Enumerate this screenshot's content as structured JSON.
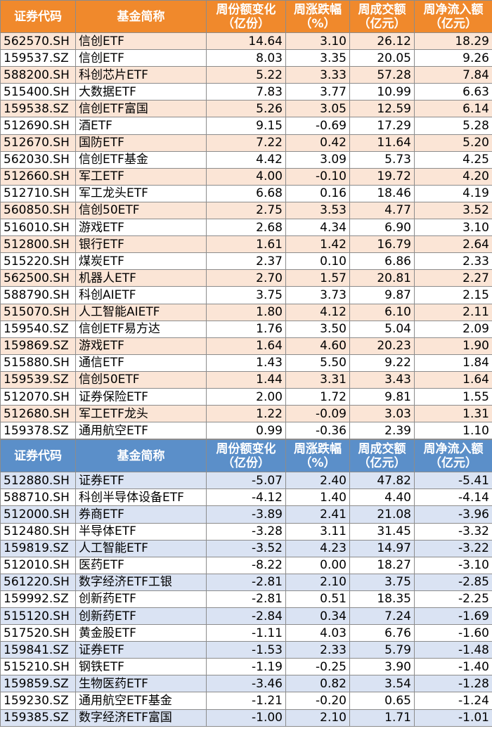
{
  "headers": {
    "code": "证券代码",
    "name": "基金简称",
    "share_change": "周份额变化（亿份）",
    "pct_change": "周涨跌幅（%）",
    "turnover": "周成交额（亿元）",
    "net_inflow": "周净流入额（亿元）"
  },
  "inflow_rows": [
    {
      "code": "562570.SH",
      "name": "信创ETF",
      "share_change": "14.64",
      "pct_change": "3.10",
      "turnover": "26.12",
      "net_inflow": "18.29"
    },
    {
      "code": "159537.SZ",
      "name": "信创ETF",
      "share_change": "8.03",
      "pct_change": "3.35",
      "turnover": "20.05",
      "net_inflow": "9.26"
    },
    {
      "code": "588200.SH",
      "name": "科创芯片ETF",
      "share_change": "5.22",
      "pct_change": "3.33",
      "turnover": "57.28",
      "net_inflow": "7.84"
    },
    {
      "code": "515400.SH",
      "name": "大数据ETF",
      "share_change": "7.83",
      "pct_change": "3.77",
      "turnover": "10.99",
      "net_inflow": "6.63"
    },
    {
      "code": "159538.SZ",
      "name": "信创ETF富国",
      "share_change": "5.26",
      "pct_change": "3.05",
      "turnover": "12.59",
      "net_inflow": "6.14"
    },
    {
      "code": "512690.SH",
      "name": "酒ETF",
      "share_change": "9.15",
      "pct_change": "-0.69",
      "turnover": "17.29",
      "net_inflow": "5.28"
    },
    {
      "code": "512670.SH",
      "name": "国防ETF",
      "share_change": "7.22",
      "pct_change": "0.42",
      "turnover": "11.64",
      "net_inflow": "5.20"
    },
    {
      "code": "562030.SH",
      "name": "信创ETF基金",
      "share_change": "4.42",
      "pct_change": "3.09",
      "turnover": "5.73",
      "net_inflow": "4.25"
    },
    {
      "code": "512660.SH",
      "name": "军工ETF",
      "share_change": "4.00",
      "pct_change": "-0.10",
      "turnover": "19.72",
      "net_inflow": "4.20"
    },
    {
      "code": "512710.SH",
      "name": "军工龙头ETF",
      "share_change": "6.68",
      "pct_change": "0.16",
      "turnover": "18.46",
      "net_inflow": "4.19"
    },
    {
      "code": "560850.SH",
      "name": "信创50ETF",
      "share_change": "2.75",
      "pct_change": "3.53",
      "turnover": "4.77",
      "net_inflow": "3.52"
    },
    {
      "code": "516010.SH",
      "name": "游戏ETF",
      "share_change": "2.68",
      "pct_change": "4.34",
      "turnover": "6.90",
      "net_inflow": "3.10"
    },
    {
      "code": "512800.SH",
      "name": "银行ETF",
      "share_change": "1.61",
      "pct_change": "1.42",
      "turnover": "16.79",
      "net_inflow": "2.64"
    },
    {
      "code": "515220.SH",
      "name": "煤炭ETF",
      "share_change": "2.37",
      "pct_change": "0.10",
      "turnover": "6.86",
      "net_inflow": "2.33"
    },
    {
      "code": "562500.SH",
      "name": "机器人ETF",
      "share_change": "2.70",
      "pct_change": "1.57",
      "turnover": "20.81",
      "net_inflow": "2.27"
    },
    {
      "code": "588790.SH",
      "name": "科创AIETF",
      "share_change": "3.75",
      "pct_change": "3.73",
      "turnover": "9.87",
      "net_inflow": "2.15"
    },
    {
      "code": "515070.SH",
      "name": "人工智能AIETF",
      "share_change": "1.80",
      "pct_change": "4.12",
      "turnover": "6.10",
      "net_inflow": "2.11"
    },
    {
      "code": "159540.SZ",
      "name": "信创ETF易方达",
      "share_change": "1.76",
      "pct_change": "3.50",
      "turnover": "5.04",
      "net_inflow": "2.09"
    },
    {
      "code": "159869.SZ",
      "name": "游戏ETF",
      "share_change": "1.64",
      "pct_change": "4.60",
      "turnover": "20.23",
      "net_inflow": "1.90"
    },
    {
      "code": "515880.SH",
      "name": "通信ETF",
      "share_change": "1.43",
      "pct_change": "5.50",
      "turnover": "9.22",
      "net_inflow": "1.84"
    },
    {
      "code": "159539.SZ",
      "name": "信创50ETF",
      "share_change": "1.44",
      "pct_change": "3.31",
      "turnover": "3.43",
      "net_inflow": "1.64"
    },
    {
      "code": "512070.SH",
      "name": "证券保险ETF",
      "share_change": "2.00",
      "pct_change": "1.72",
      "turnover": "9.81",
      "net_inflow": "1.55"
    },
    {
      "code": "512680.SH",
      "name": "军工ETF龙头",
      "share_change": "1.22",
      "pct_change": "-0.09",
      "turnover": "3.03",
      "net_inflow": "1.31"
    },
    {
      "code": "159378.SZ",
      "name": "通用航空ETF",
      "share_change": "0.99",
      "pct_change": "-0.36",
      "turnover": "2.39",
      "net_inflow": "1.10"
    }
  ],
  "outflow_rows": [
    {
      "code": "512880.SH",
      "name": "证券ETF",
      "share_change": "-5.07",
      "pct_change": "2.40",
      "turnover": "47.82",
      "net_inflow": "-5.41"
    },
    {
      "code": "588710.SH",
      "name": "科创半导体设备ETF",
      "share_change": "-4.12",
      "pct_change": "1.40",
      "turnover": "4.40",
      "net_inflow": "-4.14"
    },
    {
      "code": "512000.SH",
      "name": "券商ETF",
      "share_change": "-3.89",
      "pct_change": "2.41",
      "turnover": "21.08",
      "net_inflow": "-3.96"
    },
    {
      "code": "512480.SH",
      "name": "半导体ETF",
      "share_change": "-3.28",
      "pct_change": "3.11",
      "turnover": "31.45",
      "net_inflow": "-3.32"
    },
    {
      "code": "159819.SZ",
      "name": "人工智能ETF",
      "share_change": "-3.52",
      "pct_change": "4.23",
      "turnover": "14.97",
      "net_inflow": "-3.22"
    },
    {
      "code": "512010.SH",
      "name": "医药ETF",
      "share_change": "-8.22",
      "pct_change": "0.00",
      "turnover": "18.27",
      "net_inflow": "-3.10"
    },
    {
      "code": "561220.SH",
      "name": "数字经济ETF工银",
      "share_change": "-2.81",
      "pct_change": "2.10",
      "turnover": "3.75",
      "net_inflow": "-2.85"
    },
    {
      "code": "159992.SZ",
      "name": "创新药ETF",
      "share_change": "-2.81",
      "pct_change": "0.51",
      "turnover": "18.35",
      "net_inflow": "-2.25"
    },
    {
      "code": "515120.SH",
      "name": "创新药ETF",
      "share_change": "-2.84",
      "pct_change": "0.34",
      "turnover": "7.24",
      "net_inflow": "-1.69"
    },
    {
      "code": "517520.SH",
      "name": "黄金股ETF",
      "share_change": "-1.11",
      "pct_change": "4.03",
      "turnover": "6.76",
      "net_inflow": "-1.60"
    },
    {
      "code": "159841.SZ",
      "name": "证券ETF",
      "share_change": "-1.53",
      "pct_change": "2.33",
      "turnover": "5.79",
      "net_inflow": "-1.48"
    },
    {
      "code": "515210.SH",
      "name": "钢铁ETF",
      "share_change": "-1.19",
      "pct_change": "-0.25",
      "turnover": "3.90",
      "net_inflow": "-1.40"
    },
    {
      "code": "159859.SZ",
      "name": "生物医药ETF",
      "share_change": "-3.46",
      "pct_change": "0.82",
      "turnover": "3.54",
      "net_inflow": "-1.28"
    },
    {
      "code": "159230.SZ",
      "name": "通用航空ETF基金",
      "share_change": "-1.21",
      "pct_change": "-0.20",
      "turnover": "0.65",
      "net_inflow": "-1.24"
    },
    {
      "code": "159385.SZ",
      "name": "数字经济ETF富国",
      "share_change": "-1.00",
      "pct_change": "2.10",
      "turnover": "1.71",
      "net_inflow": "-1.01"
    }
  ]
}
